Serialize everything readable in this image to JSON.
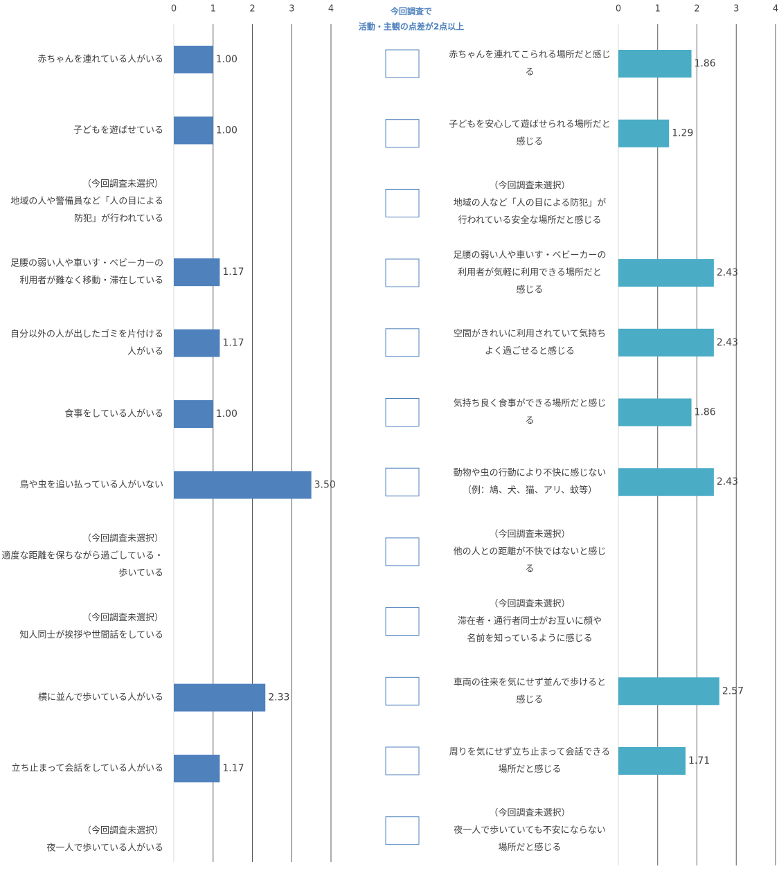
{
  "column_header": [
    "今回調査で",
    "活動・主観の点差が2点以上"
  ],
  "chart_data": [
    {
      "type": "bar",
      "orientation": "horizontal",
      "color": "#4f81bd",
      "categories": [
        [
          "赤ちゃんを連れている人がいる"
        ],
        [
          "子どもを遊ばせている"
        ],
        [
          "（今回調査未選択）",
          "地域の人や警備員など「人の目による",
          "防犯」が行われている"
        ],
        [
          "足腰の弱い人や車いす・ベビーカーの",
          "利用者が難なく移動・滞在している"
        ],
        [
          "自分以外の人が出したゴミを片付ける",
          "人がいる"
        ],
        [
          "食事をしている人がいる"
        ],
        [
          "鳥や虫を追い払っている人がいない"
        ],
        [
          "（今回調査未選択）",
          "適度な距離を保ちながら過ごしている・",
          "歩いている"
        ],
        [
          "（今回調査未選択）",
          "知人同士が挨拶や世間話をしている"
        ],
        [
          "横に並んで歩いている人がいる"
        ],
        [
          "立ち止まって会話をしている人がいる"
        ],
        [
          "（今回調査未選択）",
          "夜一人で歩いている人がいる"
        ]
      ],
      "values": [
        1,
        1,
        null,
        1.17,
        1.17,
        1,
        3.5,
        null,
        null,
        2.33,
        1.17,
        null
      ],
      "value_labels": [
        "1.00",
        "1.00",
        null,
        "1.17",
        "1.17",
        "1.00",
        "3.50",
        null,
        null,
        "2.33",
        "1.17",
        null
      ],
      "xlim": [
        0,
        4
      ],
      "xticks": [
        0,
        1,
        2,
        3,
        4
      ],
      "grid": true
    },
    {
      "type": "bar",
      "orientation": "horizontal",
      "color": "#4bacc6",
      "categories": [
        [
          "赤ちゃんを連れてこられる場所だと感じ",
          "る"
        ],
        [
          "子どもを安心して遊ばせられる場所だと",
          "感じる"
        ],
        [
          "（今回調査未選択）",
          "地域の人など「人の目による防犯」が",
          "行われている安全な場所だと感じる"
        ],
        [
          "足腰の弱い人や車いす・ベビーカーの",
          "利用者が気軽に利用できる場所だと",
          "感じる"
        ],
        [
          "空間がきれいに利用されていて気持ち",
          "よく過ごせると感じる"
        ],
        [
          "気持ち良く食事ができる場所だと感じ",
          "る"
        ],
        [
          "動物や虫の行動により不快に感じない",
          "（例：鳩、犬、猫、アリ、蚊等）"
        ],
        [
          "（今回調査未選択）",
          "他の人との距離が不快ではないと感じ",
          "る"
        ],
        [
          "（今回調査未選択）",
          "滞在者・通行者同士がお互いに顔や",
          "名前を知っているように感じる"
        ],
        [
          "車両の往来を気にせず並んで歩けると",
          "感じる"
        ],
        [
          "周りを気にせず立ち止まって会話できる",
          "場所だと感じる"
        ],
        [
          "（今回調査未選択）",
          "夜一人で歩いていても不安にならない",
          "場所だと感じる"
        ]
      ],
      "values": [
        1.86,
        1.29,
        null,
        2.43,
        2.43,
        1.86,
        2.43,
        null,
        null,
        2.57,
        1.71,
        null
      ],
      "xlim": [
        0,
        4
      ],
      "xticks": [
        0,
        1,
        2,
        3,
        4
      ],
      "grid": true
    }
  ]
}
